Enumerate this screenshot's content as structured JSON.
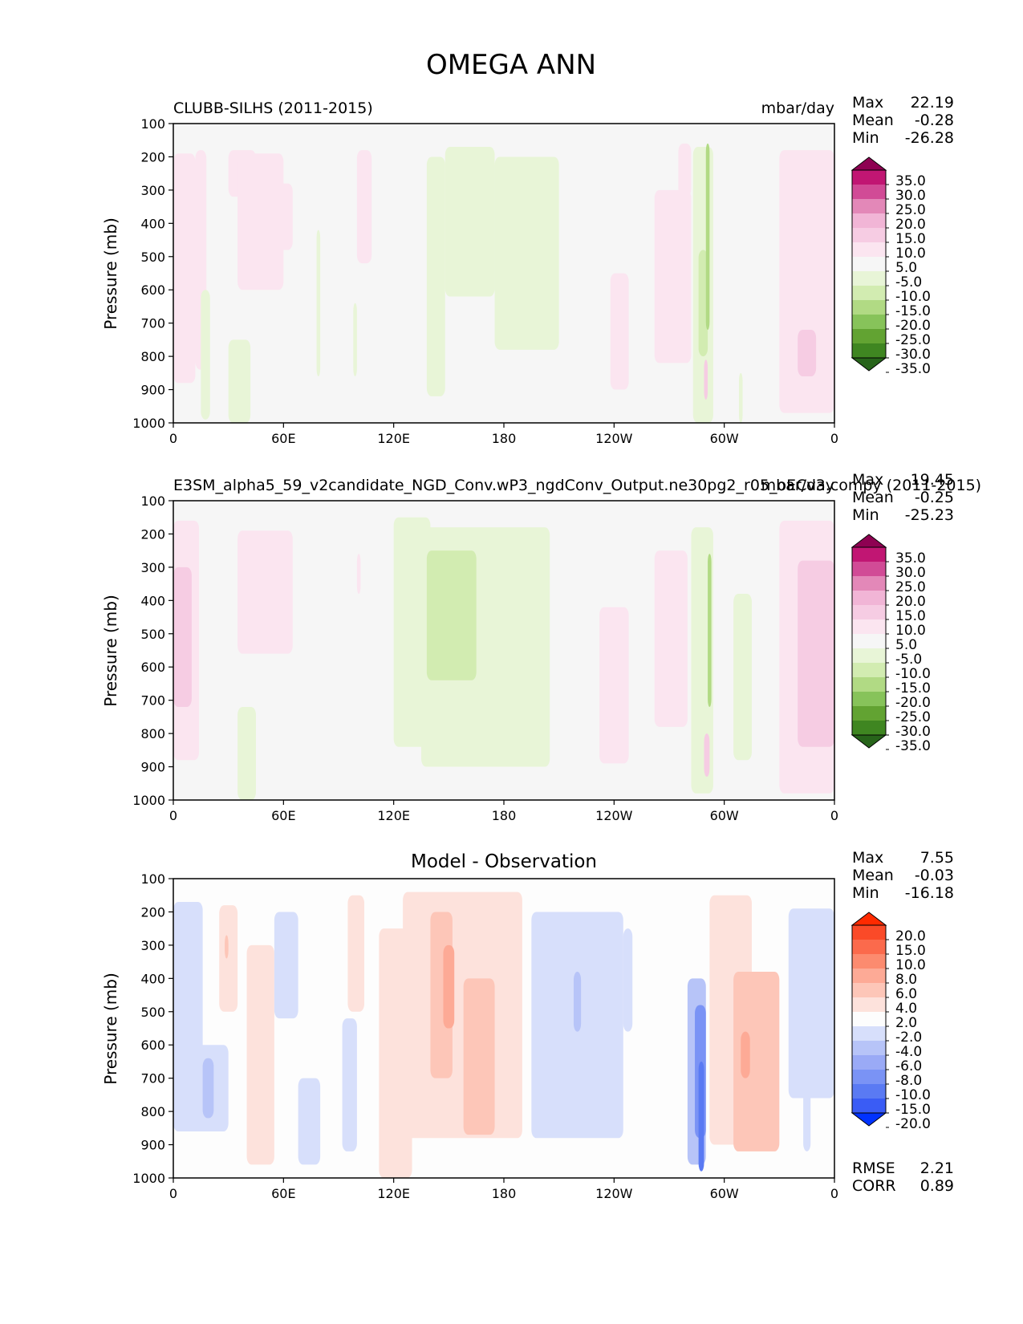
{
  "title": "OMEGA ANN",
  "ylabel": "Pressure (mb)",
  "colors": {
    "ref_test_levels": [
      "#27641a",
      "#3f8621",
      "#62a332",
      "#87c35a",
      "#b1da84",
      "#d2ecb1",
      "#e8f5d7",
      "#f6f6f6",
      "#fbe5f0",
      "#f6cce3",
      "#f1b5d6",
      "#e388b8",
      "#d14b96",
      "#c11673",
      "#8e0152"
    ],
    "diff_levels": [
      "#0032ff",
      "#3a5cf5",
      "#5a7af3",
      "#7a93f5",
      "#9aaaf6",
      "#b7c4f8",
      "#d7dffb",
      "#fdfdfd",
      "#fde2dc",
      "#fdc6b8",
      "#fdaa96",
      "#fc8b6f",
      "#fb6a4c",
      "#fa4a28",
      "#ff2a00"
    ],
    "axes": "#000000"
  },
  "panels": [
    {
      "id": "ref",
      "title_left": "CLUBB-SILHS (2011-2015)",
      "title_center": "",
      "units": "mbar/day",
      "stats": [
        {
          "label": "Max",
          "value": "22.19"
        },
        {
          "label": "Mean",
          "value": "-0.28"
        },
        {
          "label": "Min",
          "value": "-26.28"
        }
      ],
      "colorbar_labels": [
        "35.0",
        "30.0",
        "25.0",
        "20.0",
        "15.0",
        "10.0",
        "5.0",
        "-5.0",
        "-10.0",
        "-15.0",
        "-20.0",
        "-25.0",
        "-30.0",
        "-35.0"
      ],
      "extra_stats": []
    },
    {
      "id": "test",
      "title_left": "E3SM_alpha5_59_v2candidate_NGD_Conv.wP3_ngdConv_Output.ne30pg2_r05_oECv3.compy (2011-2015)",
      "title_center": "",
      "units": "mbar/day",
      "stats": [
        {
          "label": "Max",
          "value": "19.45"
        },
        {
          "label": "Mean",
          "value": "-0.25"
        },
        {
          "label": "Min",
          "value": "-25.23"
        }
      ],
      "colorbar_labels": [
        "35.0",
        "30.0",
        "25.0",
        "20.0",
        "15.0",
        "10.0",
        "5.0",
        "-5.0",
        "-10.0",
        "-15.0",
        "-20.0",
        "-25.0",
        "-30.0",
        "-35.0"
      ],
      "extra_stats": []
    },
    {
      "id": "diff",
      "title_left": "",
      "title_center": "Model - Observation",
      "units": "",
      "stats": [
        {
          "label": "Max",
          "value": "7.55"
        },
        {
          "label": "Mean",
          "value": "-0.03"
        },
        {
          "label": "Min",
          "value": "-16.18"
        }
      ],
      "colorbar_labels": [
        "20.0",
        "15.0",
        "10.0",
        "8.0",
        "6.0",
        "4.0",
        "2.0",
        "-2.0",
        "-4.0",
        "-6.0",
        "-8.0",
        "-10.0",
        "-15.0",
        "-20.0"
      ],
      "extra_stats": [
        {
          "label": "RMSE",
          "value": "2.21"
        },
        {
          "label": "CORR",
          "value": "0.89"
        }
      ]
    }
  ],
  "chart_data": [
    {
      "type": "heatmap",
      "title": "CLUBB-SILHS (2011-2015)",
      "xlabel": "",
      "ylabel": "Pressure (mb)",
      "x_ticks": [
        "0",
        "60E",
        "120E",
        "180",
        "120W",
        "60W",
        "0"
      ],
      "y_ticks": [
        "100",
        "200",
        "300",
        "400",
        "500",
        "600",
        "700",
        "800",
        "900",
        "1000"
      ],
      "xlim": [
        0,
        360
      ],
      "ylim": [
        1000,
        100
      ],
      "cells": [
        {
          "lon": [
            0,
            12
          ],
          "p": [
            190,
            880
          ],
          "v": 7
        },
        {
          "lon": [
            12,
            18
          ],
          "p": [
            180,
            840
          ],
          "v": 7
        },
        {
          "lon": [
            15,
            20
          ],
          "p": [
            600,
            990
          ],
          "v": -7
        },
        {
          "lon": [
            30,
            45
          ],
          "p": [
            180,
            320
          ],
          "v": 7
        },
        {
          "lon": [
            35,
            60
          ],
          "p": [
            190,
            600
          ],
          "v": 7
        },
        {
          "lon": [
            45,
            65
          ],
          "p": [
            280,
            480
          ],
          "v": 7
        },
        {
          "lon": [
            30,
            42
          ],
          "p": [
            750,
            1000
          ],
          "v": -7
        },
        {
          "lon": [
            78,
            80
          ],
          "p": [
            420,
            860
          ],
          "v": -7
        },
        {
          "lon": [
            100,
            108
          ],
          "p": [
            180,
            520
          ],
          "v": 7
        },
        {
          "lon": [
            98,
            100
          ],
          "p": [
            640,
            860
          ],
          "v": -7
        },
        {
          "lon": [
            138,
            148
          ],
          "p": [
            200,
            920
          ],
          "v": -7
        },
        {
          "lon": [
            148,
            175
          ],
          "p": [
            170,
            620
          ],
          "v": -7
        },
        {
          "lon": [
            175,
            210
          ],
          "p": [
            200,
            780
          ],
          "v": -7
        },
        {
          "lon": [
            238,
            248
          ],
          "p": [
            550,
            900
          ],
          "v": 7
        },
        {
          "lon": [
            262,
            282
          ],
          "p": [
            300,
            820
          ],
          "v": 7
        },
        {
          "lon": [
            275,
            282
          ],
          "p": [
            160,
            320
          ],
          "v": 7
        },
        {
          "lon": [
            283,
            294
          ],
          "p": [
            170,
            1000
          ],
          "v": -7
        },
        {
          "lon": [
            286,
            291
          ],
          "p": [
            480,
            800
          ],
          "v": -12
        },
        {
          "lon": [
            290,
            292
          ],
          "p": [
            160,
            720
          ],
          "v": -17
        },
        {
          "lon": [
            289,
            291
          ],
          "p": [
            810,
            930
          ],
          "v": 12
        },
        {
          "lon": [
            308,
            310
          ],
          "p": [
            850,
            1000
          ],
          "v": -7
        },
        {
          "lon": [
            330,
            360
          ],
          "p": [
            180,
            970
          ],
          "v": 7
        },
        {
          "lon": [
            340,
            350
          ],
          "p": [
            720,
            860
          ],
          "v": 12
        }
      ]
    },
    {
      "type": "heatmap",
      "title": "E3SM_alpha5_59_v2candidate_NGD_Conv.wP3_ngdConv_Output.ne30pg2_r05_oECv3.compy (2011-2015)",
      "xlabel": "",
      "ylabel": "Pressure (mb)",
      "x_ticks": [
        "0",
        "60E",
        "120E",
        "180",
        "120W",
        "60W",
        "0"
      ],
      "y_ticks": [
        "100",
        "200",
        "300",
        "400",
        "500",
        "600",
        "700",
        "800",
        "900",
        "1000"
      ],
      "xlim": [
        0,
        360
      ],
      "ylim": [
        1000,
        100
      ],
      "cells": [
        {
          "lon": [
            0,
            14
          ],
          "p": [
            160,
            880
          ],
          "v": 7
        },
        {
          "lon": [
            0,
            10
          ],
          "p": [
            300,
            720
          ],
          "v": 12
        },
        {
          "lon": [
            35,
            65
          ],
          "p": [
            190,
            560
          ],
          "v": 7
        },
        {
          "lon": [
            35,
            45
          ],
          "p": [
            720,
            1000
          ],
          "v": -7
        },
        {
          "lon": [
            100,
            102
          ],
          "p": [
            260,
            380
          ],
          "v": 7
        },
        {
          "lon": [
            120,
            140
          ],
          "p": [
            150,
            840
          ],
          "v": -7
        },
        {
          "lon": [
            135,
            205
          ],
          "p": [
            180,
            900
          ],
          "v": -7
        },
        {
          "lon": [
            138,
            165
          ],
          "p": [
            250,
            640
          ],
          "v": -12
        },
        {
          "lon": [
            232,
            248
          ],
          "p": [
            420,
            890
          ],
          "v": 7
        },
        {
          "lon": [
            262,
            280
          ],
          "p": [
            250,
            780
          ],
          "v": 7
        },
        {
          "lon": [
            282,
            294
          ],
          "p": [
            180,
            980
          ],
          "v": -7
        },
        {
          "lon": [
            291,
            293
          ],
          "p": [
            260,
            720
          ],
          "v": -17
        },
        {
          "lon": [
            289,
            292
          ],
          "p": [
            800,
            930
          ],
          "v": 12
        },
        {
          "lon": [
            305,
            315
          ],
          "p": [
            380,
            880
          ],
          "v": -7
        },
        {
          "lon": [
            330,
            360
          ],
          "p": [
            160,
            980
          ],
          "v": 7
        },
        {
          "lon": [
            340,
            360
          ],
          "p": [
            280,
            840
          ],
          "v": 12
        }
      ]
    },
    {
      "type": "heatmap",
      "title": "Model - Observation",
      "xlabel": "",
      "ylabel": "Pressure (mb)",
      "x_ticks": [
        "0",
        "60E",
        "120E",
        "180",
        "120W",
        "60W",
        "0"
      ],
      "y_ticks": [
        "100",
        "200",
        "300",
        "400",
        "500",
        "600",
        "700",
        "800",
        "900",
        "1000"
      ],
      "xlim": [
        0,
        360
      ],
      "ylim": [
        1000,
        100
      ],
      "cells": [
        {
          "lon": [
            0,
            16
          ],
          "p": [
            170,
            820
          ],
          "v": -3
        },
        {
          "lon": [
            0,
            30
          ],
          "p": [
            600,
            860
          ],
          "v": -3
        },
        {
          "lon": [
            16,
            22
          ],
          "p": [
            640,
            820
          ],
          "v": -5
        },
        {
          "lon": [
            25,
            35
          ],
          "p": [
            180,
            500
          ],
          "v": 3
        },
        {
          "lon": [
            28,
            30
          ],
          "p": [
            270,
            340
          ],
          "v": 5
        },
        {
          "lon": [
            40,
            55
          ],
          "p": [
            300,
            960
          ],
          "v": 3
        },
        {
          "lon": [
            55,
            68
          ],
          "p": [
            200,
            520
          ],
          "v": -3
        },
        {
          "lon": [
            68,
            80
          ],
          "p": [
            700,
            960
          ],
          "v": -3
        },
        {
          "lon": [
            92,
            100
          ],
          "p": [
            520,
            920
          ],
          "v": -3
        },
        {
          "lon": [
            95,
            104
          ],
          "p": [
            150,
            500
          ],
          "v": 3
        },
        {
          "lon": [
            112,
            130
          ],
          "p": [
            250,
            1000
          ],
          "v": 3
        },
        {
          "lon": [
            125,
            190
          ],
          "p": [
            140,
            880
          ],
          "v": 3
        },
        {
          "lon": [
            140,
            152
          ],
          "p": [
            200,
            700
          ],
          "v": 5
        },
        {
          "lon": [
            147,
            153
          ],
          "p": [
            300,
            550
          ],
          "v": 7
        },
        {
          "lon": [
            158,
            175
          ],
          "p": [
            400,
            870
          ],
          "v": 5
        },
        {
          "lon": [
            195,
            245
          ],
          "p": [
            200,
            880
          ],
          "v": -3
        },
        {
          "lon": [
            218,
            222
          ],
          "p": [
            380,
            560
          ],
          "v": -5
        },
        {
          "lon": [
            245,
            250
          ],
          "p": [
            250,
            560
          ],
          "v": -3
        },
        {
          "lon": [
            280,
            290
          ],
          "p": [
            400,
            960
          ],
          "v": -5
        },
        {
          "lon": [
            284,
            290
          ],
          "p": [
            480,
            880
          ],
          "v": -9
        },
        {
          "lon": [
            286,
            289
          ],
          "p": [
            650,
            980
          ],
          "v": -12
        },
        {
          "lon": [
            292,
            315
          ],
          "p": [
            150,
            900
          ],
          "v": 3
        },
        {
          "lon": [
            305,
            330
          ],
          "p": [
            380,
            920
          ],
          "v": 5
        },
        {
          "lon": [
            309,
            314
          ],
          "p": [
            560,
            700
          ],
          "v": 7
        },
        {
          "lon": [
            335,
            360
          ],
          "p": [
            190,
            760
          ],
          "v": -3
        },
        {
          "lon": [
            343,
            347
          ],
          "p": [
            640,
            920
          ],
          "v": -3
        }
      ]
    }
  ]
}
